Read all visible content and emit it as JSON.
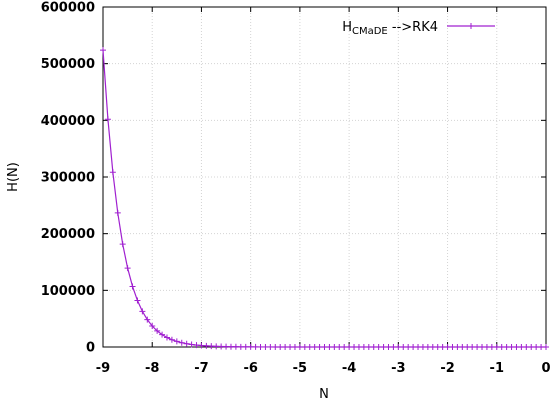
{
  "chart_data": {
    "type": "line",
    "title": "",
    "xlabel": "N",
    "ylabel": "H(N)",
    "xlim": [
      -9,
      0
    ],
    "ylim": [
      0,
      600000
    ],
    "xticks": [
      -9,
      -8,
      -7,
      -6,
      -5,
      -4,
      -3,
      -2,
      -1,
      0
    ],
    "xtick_labels": [
      "-9",
      "-8",
      "-7",
      "-6",
      "-5",
      "-4",
      "-3",
      "-2",
      "-1",
      "0"
    ],
    "yticks": [
      0,
      100000,
      200000,
      300000,
      400000,
      500000,
      600000
    ],
    "ytick_labels": [
      "0",
      "100000",
      "200000",
      "300000",
      "400000",
      "500000",
      "600000"
    ],
    "grid": true,
    "legend_position": "top-right",
    "legend": {
      "main": "H",
      "sub": "CMaDE",
      "suffix": " -->RK4"
    },
    "series": [
      {
        "name": "HCMaDE -->RK4",
        "color": "#a020d0",
        "marker": "plus",
        "x_start": -9.0,
        "x_step": 0.1,
        "y_start": 524000,
        "decay_rate": 2.65,
        "points": 91
      }
    ]
  }
}
